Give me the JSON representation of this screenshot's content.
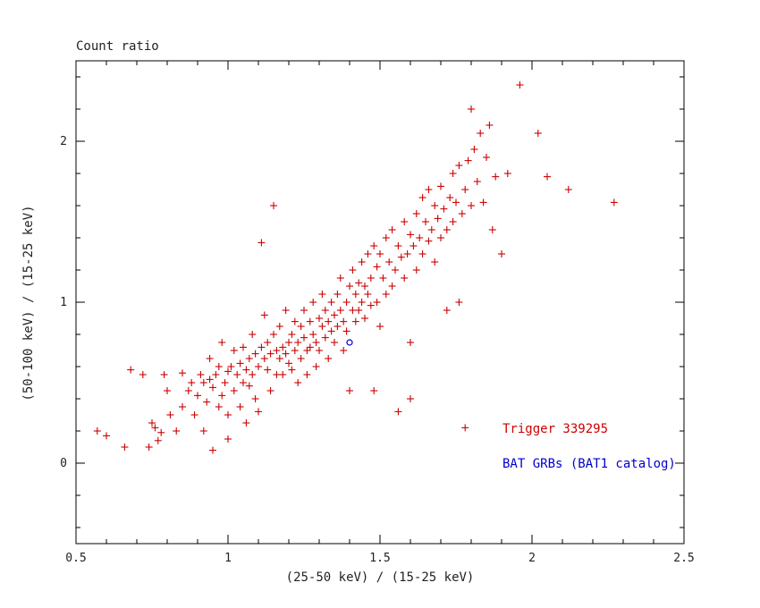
{
  "figure": {
    "title": "Count ratio",
    "xlabel": "(25-50 keV) / (15-25 keV)",
    "ylabel": "(50-100 keV) / (15-25 keV)"
  },
  "legend": {
    "trigger_label": "Trigger 339295",
    "trigger_color": "#cc0000",
    "catalog_label": "BAT GRBs (BAT1 catalog)",
    "catalog_color": "#0000cc"
  },
  "colors": {
    "frame": "#000000",
    "tick_text": "#222222",
    "background": "#ffffff"
  },
  "chart_data": {
    "type": "scatter",
    "title": "Count ratio",
    "xlabel": "(25-50 keV) / (15-25 keV)",
    "ylabel": "(50-100 keV) / (15-25 keV)",
    "xlim": [
      0.5,
      2.5
    ],
    "ylim": [
      -0.5,
      2.5
    ],
    "x_ticks": [
      0.5,
      1,
      1.5,
      2,
      2.5
    ],
    "x_tick_labels": [
      "0.5",
      "1",
      "1.5",
      "2",
      "2.5"
    ],
    "y_ticks": [
      0,
      1,
      2
    ],
    "y_tick_labels": [
      "0",
      "1",
      "2"
    ],
    "grid": false,
    "legend_position": "lower right",
    "series": [
      {
        "name": "Trigger 339295",
        "marker": "plus",
        "color": "#cc0000",
        "points": [
          [
            0.57,
            0.2
          ],
          [
            0.6,
            0.17
          ],
          [
            0.66,
            0.1
          ],
          [
            0.68,
            0.58
          ],
          [
            0.72,
            0.55
          ],
          [
            0.74,
            0.1
          ],
          [
            0.75,
            0.25
          ],
          [
            0.76,
            0.22
          ],
          [
            0.77,
            0.14
          ],
          [
            0.78,
            0.19
          ],
          [
            0.79,
            0.55
          ],
          [
            0.8,
            0.45
          ],
          [
            0.81,
            0.3
          ],
          [
            0.83,
            0.2
          ],
          [
            0.85,
            0.56
          ],
          [
            0.85,
            0.35
          ],
          [
            0.87,
            0.45
          ],
          [
            0.88,
            0.5
          ],
          [
            0.89,
            0.3
          ],
          [
            0.9,
            0.42
          ],
          [
            0.91,
            0.55
          ],
          [
            0.92,
            0.5
          ],
          [
            0.92,
            0.2
          ],
          [
            0.93,
            0.38
          ],
          [
            0.94,
            0.52
          ],
          [
            0.94,
            0.65
          ],
          [
            0.95,
            0.47
          ],
          [
            0.95,
            0.08
          ],
          [
            0.96,
            0.55
          ],
          [
            0.97,
            0.35
          ],
          [
            0.97,
            0.6
          ],
          [
            0.98,
            0.42
          ],
          [
            0.98,
            0.75
          ],
          [
            0.99,
            0.5
          ],
          [
            1.0,
            0.57
          ],
          [
            1.0,
            0.3
          ],
          [
            1.0,
            0.15
          ],
          [
            1.01,
            0.6
          ],
          [
            1.02,
            0.45
          ],
          [
            1.02,
            0.7
          ],
          [
            1.03,
            0.55
          ],
          [
            1.04,
            0.35
          ],
          [
            1.04,
            0.62
          ],
          [
            1.05,
            0.5
          ],
          [
            1.05,
            0.72
          ],
          [
            1.06,
            0.58
          ],
          [
            1.06,
            0.25
          ],
          [
            1.07,
            0.65
          ],
          [
            1.07,
            0.48
          ],
          [
            1.08,
            0.55
          ],
          [
            1.08,
            0.8
          ],
          [
            1.09,
            0.4
          ],
          [
            1.09,
            0.68
          ],
          [
            1.1,
            0.6
          ],
          [
            1.1,
            0.32
          ],
          [
            1.11,
            0.72
          ],
          [
            1.11,
            1.37
          ],
          [
            1.12,
            0.65
          ],
          [
            1.12,
            0.92
          ],
          [
            1.13,
            0.58
          ],
          [
            1.13,
            0.75
          ],
          [
            1.14,
            0.68
          ],
          [
            1.14,
            0.45
          ],
          [
            1.15,
            0.8
          ],
          [
            1.15,
            1.6
          ],
          [
            1.16,
            0.7
          ],
          [
            1.16,
            0.55
          ],
          [
            1.17,
            0.65
          ],
          [
            1.17,
            0.85
          ],
          [
            1.18,
            0.72
          ],
          [
            1.18,
            0.55
          ],
          [
            1.19,
            0.95
          ],
          [
            1.19,
            0.68
          ],
          [
            1.2,
            0.75
          ],
          [
            1.2,
            0.62
          ],
          [
            1.21,
            0.8
          ],
          [
            1.21,
            0.58
          ],
          [
            1.22,
            0.7
          ],
          [
            1.22,
            0.88
          ],
          [
            1.23,
            0.75
          ],
          [
            1.23,
            0.5
          ],
          [
            1.24,
            0.85
          ],
          [
            1.24,
            0.65
          ],
          [
            1.25,
            0.78
          ],
          [
            1.25,
            0.95
          ],
          [
            1.26,
            0.7
          ],
          [
            1.26,
            0.55
          ],
          [
            1.27,
            0.88
          ],
          [
            1.27,
            0.72
          ],
          [
            1.28,
            0.8
          ],
          [
            1.28,
            1.0
          ],
          [
            1.29,
            0.75
          ],
          [
            1.29,
            0.6
          ],
          [
            1.3,
            0.9
          ],
          [
            1.3,
            0.7
          ],
          [
            1.31,
            0.85
          ],
          [
            1.31,
            1.05
          ],
          [
            1.32,
            0.78
          ],
          [
            1.32,
            0.95
          ],
          [
            1.33,
            0.88
          ],
          [
            1.33,
            0.65
          ],
          [
            1.34,
            1.0
          ],
          [
            1.34,
            0.82
          ],
          [
            1.35,
            0.92
          ],
          [
            1.35,
            0.75
          ],
          [
            1.36,
            1.05
          ],
          [
            1.36,
            0.85
          ],
          [
            1.37,
            0.95
          ],
          [
            1.37,
            1.15
          ],
          [
            1.38,
            0.88
          ],
          [
            1.38,
            0.7
          ],
          [
            1.39,
            1.0
          ],
          [
            1.39,
            0.82
          ],
          [
            1.4,
            1.1
          ],
          [
            1.4,
            0.45
          ],
          [
            1.41,
            0.95
          ],
          [
            1.41,
            1.2
          ],
          [
            1.42,
            1.05
          ],
          [
            1.42,
            0.88
          ],
          [
            1.43,
            1.12
          ],
          [
            1.43,
            0.95
          ],
          [
            1.44,
            1.25
          ],
          [
            1.44,
            1.0
          ],
          [
            1.45,
            1.1
          ],
          [
            1.45,
            0.9
          ],
          [
            1.46,
            1.3
          ],
          [
            1.46,
            1.05
          ],
          [
            1.47,
            1.15
          ],
          [
            1.47,
            0.98
          ],
          [
            1.48,
            1.35
          ],
          [
            1.48,
            0.45
          ],
          [
            1.49,
            1.22
          ],
          [
            1.49,
            1.0
          ],
          [
            1.5,
            1.3
          ],
          [
            1.5,
            0.85
          ],
          [
            1.51,
            1.15
          ],
          [
            1.52,
            1.4
          ],
          [
            1.52,
            1.05
          ],
          [
            1.53,
            1.25
          ],
          [
            1.54,
            1.1
          ],
          [
            1.54,
            1.45
          ],
          [
            1.55,
            1.2
          ],
          [
            1.56,
            1.35
          ],
          [
            1.56,
            0.32
          ],
          [
            1.57,
            1.28
          ],
          [
            1.58,
            1.5
          ],
          [
            1.58,
            1.15
          ],
          [
            1.59,
            1.3
          ],
          [
            1.6,
            1.42
          ],
          [
            1.6,
            0.4
          ],
          [
            1.6,
            0.75
          ],
          [
            1.61,
            1.35
          ],
          [
            1.62,
            1.55
          ],
          [
            1.62,
            1.2
          ],
          [
            1.63,
            1.4
          ],
          [
            1.64,
            1.65
          ],
          [
            1.64,
            1.3
          ],
          [
            1.65,
            1.5
          ],
          [
            1.66,
            1.38
          ],
          [
            1.66,
            1.7
          ],
          [
            1.67,
            1.45
          ],
          [
            1.68,
            1.6
          ],
          [
            1.68,
            1.25
          ],
          [
            1.69,
            1.52
          ],
          [
            1.7,
            1.72
          ],
          [
            1.7,
            1.4
          ],
          [
            1.71,
            1.58
          ],
          [
            1.72,
            1.45
          ],
          [
            1.72,
            0.95
          ],
          [
            1.73,
            1.65
          ],
          [
            1.74,
            1.8
          ],
          [
            1.74,
            1.5
          ],
          [
            1.75,
            1.62
          ],
          [
            1.76,
            1.0
          ],
          [
            1.76,
            1.85
          ],
          [
            1.77,
            1.55
          ],
          [
            1.78,
            1.7
          ],
          [
            1.78,
            0.22
          ],
          [
            1.79,
            1.88
          ],
          [
            1.8,
            1.6
          ],
          [
            1.8,
            2.2
          ],
          [
            1.81,
            1.95
          ],
          [
            1.82,
            1.75
          ],
          [
            1.83,
            2.05
          ],
          [
            1.84,
            1.62
          ],
          [
            1.85,
            1.9
          ],
          [
            1.86,
            2.1
          ],
          [
            1.87,
            1.45
          ],
          [
            1.88,
            1.78
          ],
          [
            1.9,
            1.3
          ],
          [
            1.92,
            1.8
          ],
          [
            1.96,
            2.35
          ],
          [
            2.02,
            2.05
          ],
          [
            2.05,
            1.78
          ],
          [
            2.12,
            1.7
          ],
          [
            2.27,
            1.62
          ]
        ]
      },
      {
        "name": "BAT GRBs (BAT1 catalog)",
        "marker": "circle",
        "color": "#0000cc",
        "points": [
          [
            1.4,
            0.75
          ]
        ]
      }
    ]
  }
}
